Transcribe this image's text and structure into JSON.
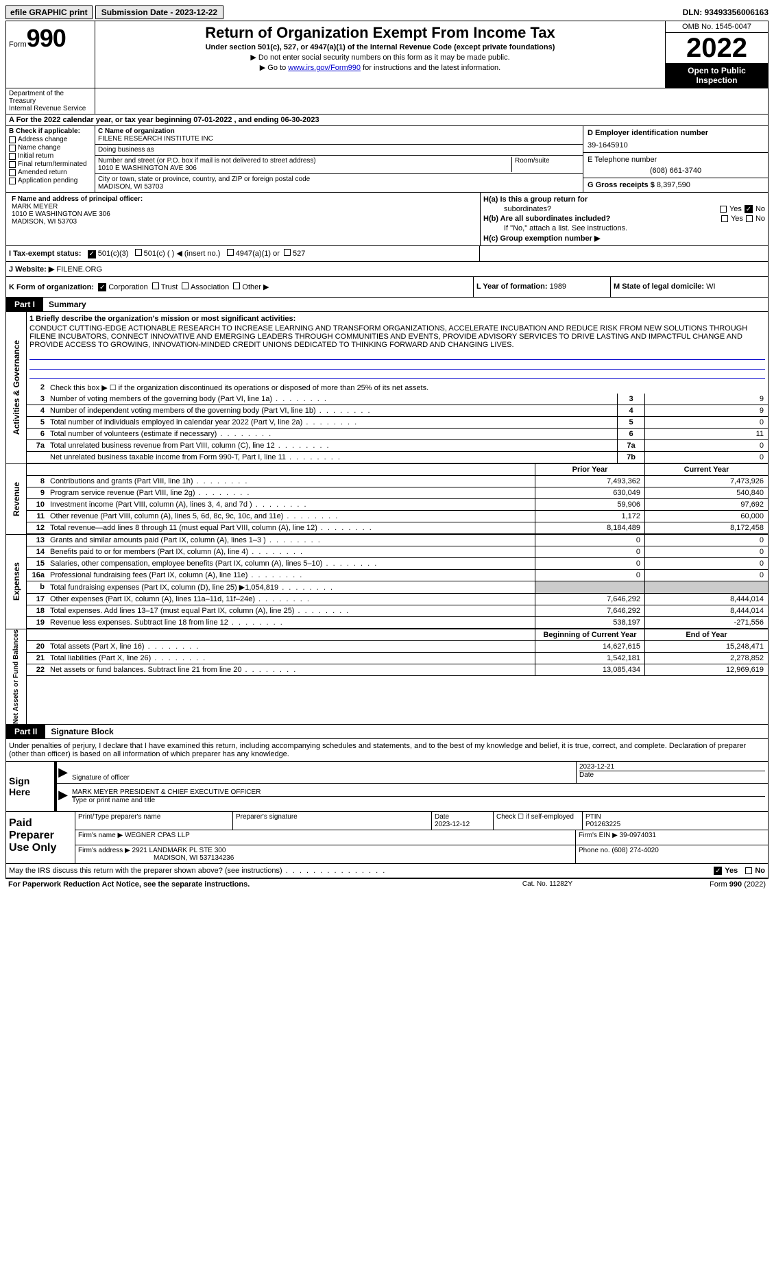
{
  "colors": {
    "black": "#000000",
    "white": "#ffffff",
    "gray": "#cccccc",
    "link": "#0000cc",
    "btn_bg": "#e8e8e8"
  },
  "top": {
    "efile": "efile GRAPHIC print",
    "submission": "Submission Date - 2023-12-22",
    "dln": "DLN: 93493356006163"
  },
  "header": {
    "form_prefix": "Form",
    "form_num": "990",
    "title": "Return of Organization Exempt From Income Tax",
    "subtitle": "Under section 501(c), 527, or 4947(a)(1) of the Internal Revenue Code (except private foundations)",
    "instr1": "▶ Do not enter social security numbers on this form as it may be made public.",
    "instr2_pre": "▶ Go to ",
    "instr2_link": "www.irs.gov/Form990",
    "instr2_post": " for instructions and the latest information.",
    "omb": "OMB No. 1545-0047",
    "year": "2022",
    "open": "Open to Public Inspection",
    "dept1": "Department of the Treasury",
    "dept2": "Internal Revenue Service"
  },
  "a": {
    "text": "A For the 2022 calendar year, or tax year beginning 07-01-2022    , and ending 06-30-2023"
  },
  "b": {
    "label": "B Check if applicable:",
    "items": [
      "Address change",
      "Name change",
      "Initial return",
      "Final return/terminated",
      "Amended return",
      "Application pending"
    ]
  },
  "c": {
    "name_label": "C Name of organization",
    "name": "FILENE RESEARCH INSTITUTE INC",
    "dba_label": "Doing business as",
    "dba": "",
    "addr_label": "Number and street (or P.O. box if mail is not delivered to street address)",
    "addr": "1010 E WASHINGTON AVE 306",
    "suite_label": "Room/suite",
    "city_label": "City or town, state or province, country, and ZIP or foreign postal code",
    "city": "MADISON, WI  53703"
  },
  "d": {
    "label": "D Employer identification number",
    "val": "39-1645910"
  },
  "e": {
    "label": "E Telephone number",
    "val": "(608) 661-3740"
  },
  "g": {
    "label": "G Gross receipts $",
    "val": "8,397,590"
  },
  "f": {
    "label": "F Name and address of principal officer:",
    "name": "MARK MEYER",
    "addr1": "1010 E WASHINGTON AVE 306",
    "addr2": "MADISON, WI  53703"
  },
  "h": {
    "a_label": "H(a)  Is this a group return for",
    "a_sub": "subordinates?",
    "b_label": "H(b)  Are all subordinates included?",
    "attach": "If \"No,\" attach a list. See instructions.",
    "c_label": "H(c)  Group exemption number ▶",
    "yes": "Yes",
    "no": "No"
  },
  "i": {
    "label": "I    Tax-exempt status:",
    "opts": [
      "501(c)(3)",
      "501(c) (   ) ◀ (insert no.)",
      "4947(a)(1) or",
      "527"
    ]
  },
  "j": {
    "label": "J   Website: ▶",
    "val": "FILENE.ORG"
  },
  "k": {
    "label": "K Form of organization:",
    "opts": [
      "Corporation",
      "Trust",
      "Association",
      "Other ▶"
    ]
  },
  "l": {
    "label": "L Year of formation:",
    "val": "1989"
  },
  "m": {
    "label": "M State of legal domicile:",
    "val": "WI"
  },
  "part1": {
    "tab": "Part I",
    "title": "Summary",
    "vert1": "Activities & Governance",
    "vert2": "Revenue",
    "vert3": "Expenses",
    "vert4": "Net Assets or Fund Balances",
    "l1_label": "1  Briefly describe the organization's mission or most significant activities:",
    "l1_text": "CONDUCT CUTTING-EDGE ACTIONABLE RESEARCH TO INCREASE LEARNING AND TRANSFORM ORGANIZATIONS, ACCELERATE INCUBATION AND REDUCE RISK FROM NEW SOLUTIONS THROUGH FILENE INCUBATORS, CONNECT INNOVATIVE AND EMERGING LEADERS THROUGH COMMUNITIES AND EVENTS, PROVIDE ADVISORY SERVICES TO DRIVE LASTING AND IMPACTFUL CHANGE AND PROVIDE ACCESS TO GROWING, INNOVATION-MINDED CREDIT UNIONS DEDICATED TO THINKING FORWARD AND CHANGING LIVES.",
    "l2": "Check this box ▶ ☐  if the organization discontinued its operations or disposed of more than 25% of its net assets.",
    "lines_single": [
      {
        "n": "3",
        "t": "Number of voting members of the governing body (Part VI, line 1a)",
        "box": "3",
        "v": "9"
      },
      {
        "n": "4",
        "t": "Number of independent voting members of the governing body (Part VI, line 1b)",
        "box": "4",
        "v": "9"
      },
      {
        "n": "5",
        "t": "Total number of individuals employed in calendar year 2022 (Part V, line 2a)",
        "box": "5",
        "v": "0"
      },
      {
        "n": "6",
        "t": "Total number of volunteers (estimate if necessary)",
        "box": "6",
        "v": "11"
      },
      {
        "n": "7a",
        "t": "Total unrelated business revenue from Part VIII, column (C), line 12",
        "box": "7a",
        "v": "0"
      },
      {
        "n": "",
        "t": "Net unrelated business taxable income from Form 990-T, Part I, line 11",
        "box": "7b",
        "v": "0"
      }
    ],
    "prior_label": "Prior Year",
    "curr_label": "Current Year",
    "by_label": "Beginning of Current Year",
    "ey_label": "End of Year",
    "rev_lines": [
      {
        "n": "8",
        "t": "Contributions and grants (Part VIII, line 1h)",
        "p": "7,493,362",
        "c": "7,473,926"
      },
      {
        "n": "9",
        "t": "Program service revenue (Part VIII, line 2g)",
        "p": "630,049",
        "c": "540,840"
      },
      {
        "n": "10",
        "t": "Investment income (Part VIII, column (A), lines 3, 4, and 7d )",
        "p": "59,906",
        "c": "97,692"
      },
      {
        "n": "11",
        "t": "Other revenue (Part VIII, column (A), lines 5, 6d, 8c, 9c, 10c, and 11e)",
        "p": "1,172",
        "c": "60,000"
      },
      {
        "n": "12",
        "t": "Total revenue—add lines 8 through 11 (must equal Part VIII, column (A), line 12)",
        "p": "8,184,489",
        "c": "8,172,458"
      }
    ],
    "exp_lines": [
      {
        "n": "13",
        "t": "Grants and similar amounts paid (Part IX, column (A), lines 1–3 )",
        "p": "0",
        "c": "0"
      },
      {
        "n": "14",
        "t": "Benefits paid to or for members (Part IX, column (A), line 4)",
        "p": "0",
        "c": "0"
      },
      {
        "n": "15",
        "t": "Salaries, other compensation, employee benefits (Part IX, column (A), lines 5–10)",
        "p": "0",
        "c": "0"
      },
      {
        "n": "16a",
        "t": "Professional fundraising fees (Part IX, column (A), line 11e)",
        "p": "0",
        "c": "0"
      },
      {
        "n": "b",
        "t": "Total fundraising expenses (Part IX, column (D), line 25) ▶1,054,819",
        "p": "gray",
        "c": "gray"
      },
      {
        "n": "17",
        "t": "Other expenses (Part IX, column (A), lines 11a–11d, 11f–24e)",
        "p": "7,646,292",
        "c": "8,444,014"
      },
      {
        "n": "18",
        "t": "Total expenses. Add lines 13–17 (must equal Part IX, column (A), line 25)",
        "p": "7,646,292",
        "c": "8,444,014"
      },
      {
        "n": "19",
        "t": "Revenue less expenses. Subtract line 18 from line 12",
        "p": "538,197",
        "c": "-271,556"
      }
    ],
    "na_lines": [
      {
        "n": "20",
        "t": "Total assets (Part X, line 16)",
        "p": "14,627,615",
        "c": "15,248,471"
      },
      {
        "n": "21",
        "t": "Total liabilities (Part X, line 26)",
        "p": "1,542,181",
        "c": "2,278,852"
      },
      {
        "n": "22",
        "t": "Net assets or fund balances. Subtract line 21 from line 20",
        "p": "13,085,434",
        "c": "12,969,619"
      }
    ]
  },
  "part2": {
    "tab": "Part II",
    "title": "Signature Block",
    "intro": "Under penalties of perjury, I declare that I have examined this return, including accompanying schedules and statements, and to the best of my knowledge and belief, it is true, correct, and complete. Declaration of preparer (other than officer) is based on all information of which preparer has any knowledge.",
    "sign_here": "Sign Here",
    "sig_officer": "Signature of officer",
    "sig_date": "2023-12-21",
    "date_label": "Date",
    "name_title": "MARK MEYER  PRESIDENT & CHIEF EXECUTIVE OFFICER",
    "type_label": "Type or print name and title",
    "paid_label": "Paid Preparer Use Only",
    "p_name_label": "Print/Type preparer's name",
    "p_sig_label": "Preparer's signature",
    "p_date_label": "Date",
    "p_date": "2023-12-12",
    "p_check": "Check ☐ if self-employed",
    "ptin_label": "PTIN",
    "ptin": "P01263225",
    "firm_name_label": "Firm's name    ▶",
    "firm_name": "WEGNER CPAS LLP",
    "firm_ein_label": "Firm's EIN ▶",
    "firm_ein": "39-0974031",
    "firm_addr_label": "Firm's address ▶",
    "firm_addr1": "2921 LANDMARK PL STE 300",
    "firm_addr2": "MADISON, WI  537134236",
    "phone_label": "Phone no.",
    "phone": "(608) 274-4020"
  },
  "discuss": {
    "text": "May the IRS discuss this return with the preparer shown above? (see instructions)",
    "yes": "Yes",
    "no": "No"
  },
  "footer": {
    "left": "For Paperwork Reduction Act Notice, see the separate instructions.",
    "mid": "Cat. No. 11282Y",
    "right_pre": "Form ",
    "right_form": "990",
    "right_post": " (2022)"
  }
}
